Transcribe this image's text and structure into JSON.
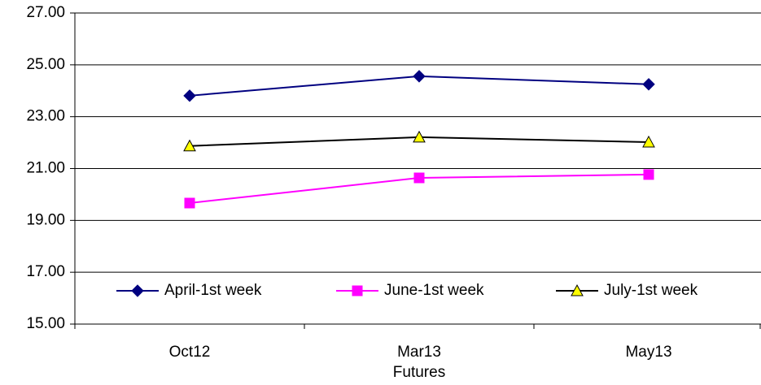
{
  "chart_data": {
    "type": "line",
    "x_label": "Futures",
    "categories": [
      "Oct12",
      "Mar13",
      "May13"
    ],
    "series": [
      {
        "name": "April-1st week",
        "color": "#000080",
        "marker": "diamond",
        "values": [
          23.81,
          24.56,
          24.25
        ]
      },
      {
        "name": "June-1st week",
        "color": "#ff00ff",
        "marker": "square",
        "values": [
          19.67,
          20.64,
          20.77
        ]
      },
      {
        "name": "July-1st week",
        "color": "#000000",
        "marker": "triangle",
        "marker_fill": "#ffff00",
        "values": [
          21.87,
          22.21,
          22.02
        ]
      }
    ],
    "ylim": [
      15,
      27
    ],
    "yticks": [
      {
        "value": 15,
        "label": "15.00"
      },
      {
        "value": 17,
        "label": "17.00"
      },
      {
        "value": 19,
        "label": "19.00"
      },
      {
        "value": 21,
        "label": "21.00"
      },
      {
        "value": 23,
        "label": "23.00"
      },
      {
        "value": 25,
        "label": "25.00"
      },
      {
        "value": 27,
        "label": "27.00"
      }
    ],
    "grid": true,
    "legend": "bottom"
  }
}
